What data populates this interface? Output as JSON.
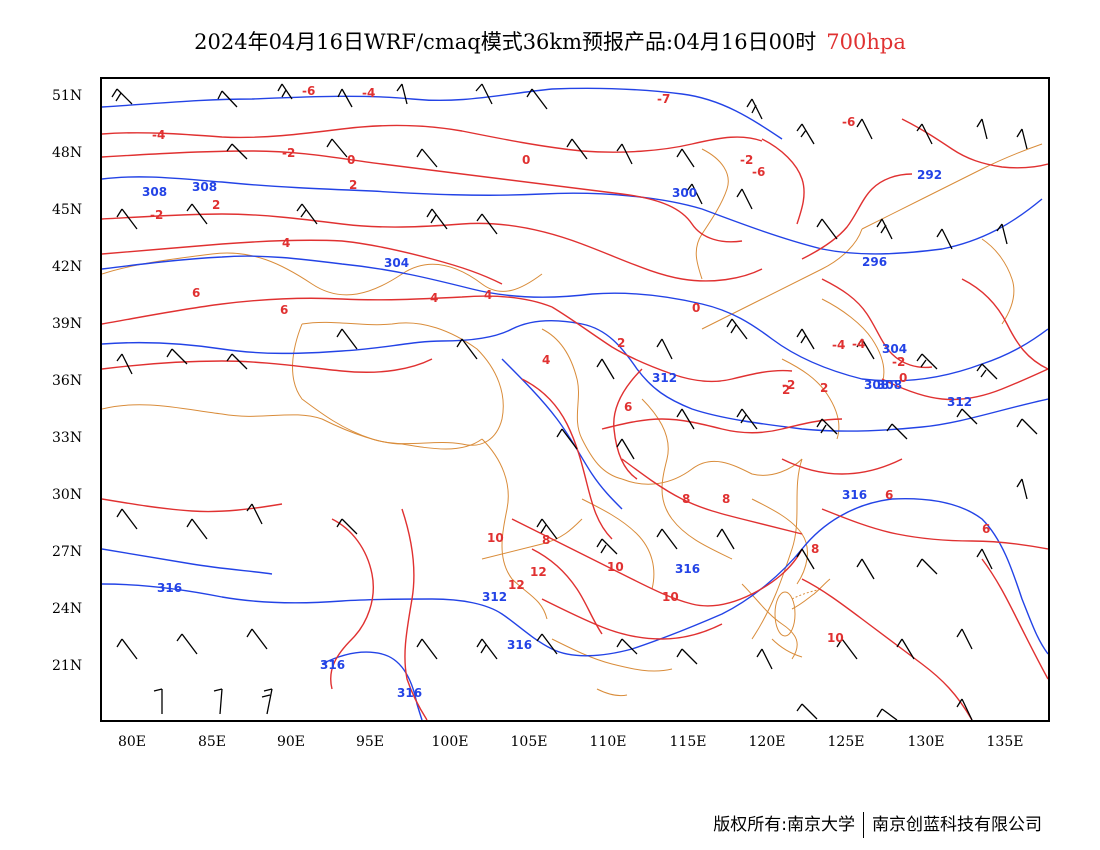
{
  "title": {
    "main": "2024年04月16日WRF/cmaq模式36km预报产品:04月16日00时",
    "level": "700hpa",
    "level_color": "#e03131"
  },
  "axes": {
    "y_labels": [
      "51N",
      "48N",
      "45N",
      "42N",
      "39N",
      "36N",
      "33N",
      "30N",
      "27N",
      "24N",
      "21N"
    ],
    "x_labels": [
      "80E",
      "85E",
      "90E",
      "95E",
      "100E",
      "105E",
      "110E",
      "115E",
      "120E",
      "125E",
      "130E",
      "135E"
    ]
  },
  "colors": {
    "temperature": "#e03131",
    "height": "#2343e6",
    "border": "#d98c3a",
    "wind": "#000000"
  },
  "height_labels": [
    "308",
    "308",
    "304",
    "300",
    "296",
    "292",
    "304",
    "308",
    "312",
    "312",
    "308",
    "316",
    "316",
    "316",
    "312",
    "316",
    "316",
    "316"
  ],
  "temp_labels": [
    "-6",
    "-4",
    "-4",
    "-2",
    "-2",
    "0",
    "0",
    "2",
    "2",
    "4",
    "4",
    "6",
    "6",
    "4",
    "0",
    "-2",
    "2",
    "2",
    "4",
    "6",
    "8",
    "8",
    "10",
    "12",
    "12",
    "10",
    "10",
    "10",
    "8",
    "8",
    "6",
    "6",
    "-6",
    "-4",
    "-4",
    "-2",
    "0",
    "-2",
    "2",
    "-7",
    "-6"
  ],
  "footer": {
    "left": "版权所有:南京大学",
    "right": "南京创蓝科技有限公司"
  }
}
